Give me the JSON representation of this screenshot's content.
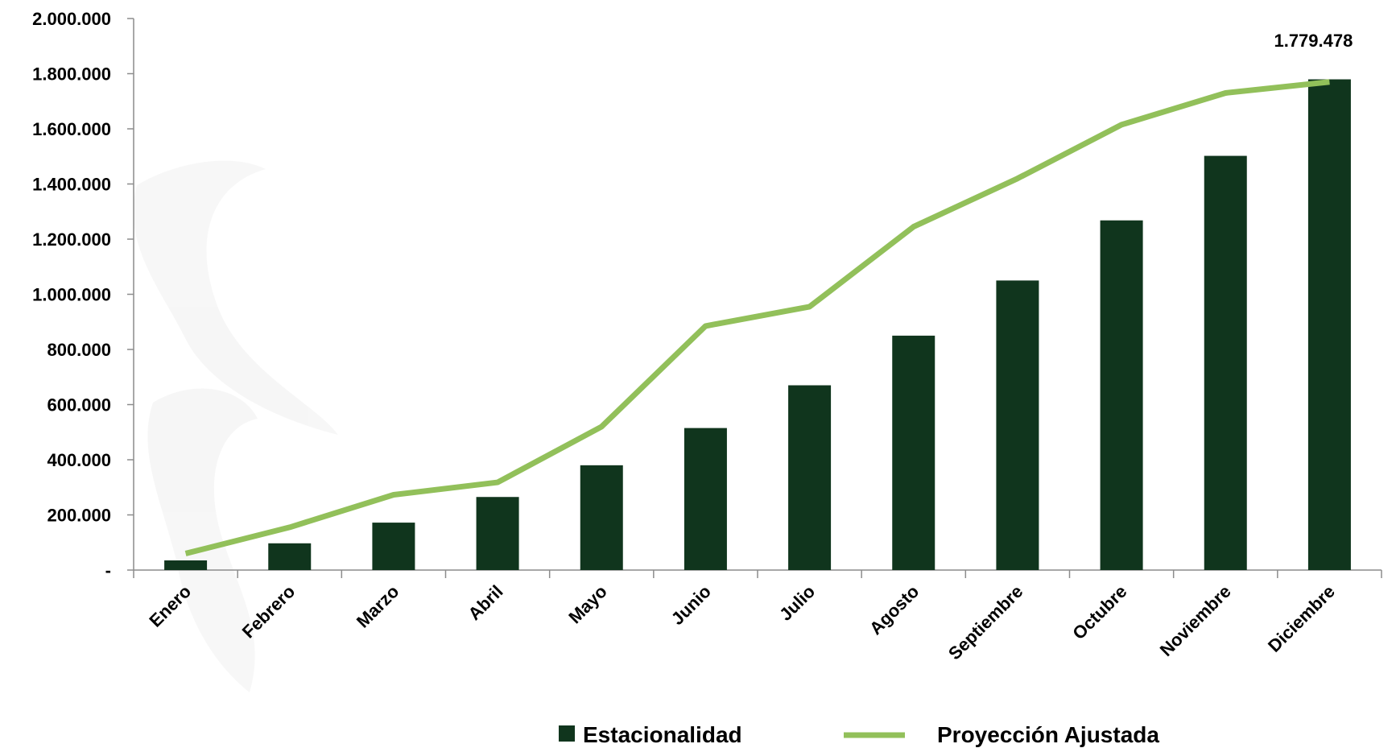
{
  "chart_data": {
    "type": "bar",
    "title": "",
    "xlabel": "",
    "ylabel": "",
    "ylim": [
      0,
      2000000
    ],
    "yticks": [
      "-",
      "200.000",
      "400.000",
      "600.000",
      "800.000",
      "1.000.000",
      "1.200.000",
      "1.400.000",
      "1.600.000",
      "1.800.000",
      "2.000.000"
    ],
    "categories": [
      "Enero",
      "Febrero",
      "Marzo",
      "Abril",
      "Mayo",
      "Junio",
      "Julio",
      "Agosto",
      "Septiembre",
      "Octubre",
      "Noviembre",
      "Diciembre"
    ],
    "series": [
      {
        "name": "Estacionalidad",
        "type": "bar",
        "color": "#10351d",
        "values": [
          35000,
          97000,
          172000,
          265000,
          380000,
          515000,
          670000,
          850000,
          1050000,
          1268000,
          1502000,
          1779478
        ]
      },
      {
        "name": "Proyección Ajustada",
        "type": "line",
        "color": "#92c05a",
        "values": [
          60000,
          155000,
          273000,
          318000,
          520000,
          885000,
          955000,
          1245000,
          1420000,
          1615000,
          1730000,
          1770000
        ]
      }
    ],
    "data_labels": [
      {
        "category": "Diciembre",
        "text": "1.779.478"
      }
    ],
    "grid": false,
    "legend_position": "bottom"
  }
}
